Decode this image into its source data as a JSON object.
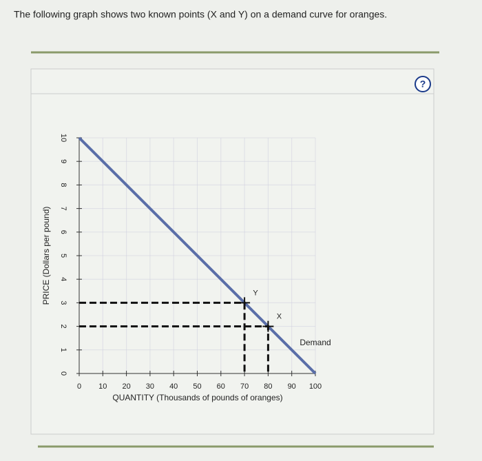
{
  "question": "The following graph shows two known points (X and Y) on a demand curve for oranges.",
  "help_icon": "?",
  "chart_data": {
    "type": "line",
    "x_label": "QUANTITY (Thousands of pounds of oranges)",
    "y_label": "PRICE (Dollars per pound)",
    "x": [
      0,
      100
    ],
    "series": [
      {
        "name": "Demand",
        "color": "#5a6ea8",
        "values": [
          10,
          0
        ]
      }
    ],
    "points": [
      {
        "label": "Y",
        "x": 70,
        "y": 3
      },
      {
        "label": "X",
        "x": 80,
        "y": 2
      }
    ],
    "xlim": [
      0,
      100
    ],
    "xticks": [
      0,
      10,
      20,
      30,
      40,
      50,
      60,
      70,
      80,
      90,
      100
    ],
    "ylim": [
      0,
      10
    ],
    "yticks": [
      0,
      1,
      2,
      3,
      4,
      5,
      6,
      7,
      8,
      9,
      10
    ],
    "grid": true
  }
}
